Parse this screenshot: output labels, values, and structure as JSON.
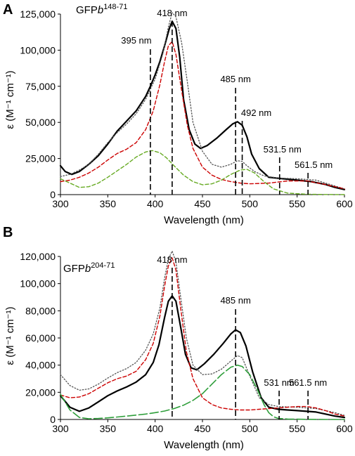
{
  "figure": {
    "panels": [
      {
        "letter": "A",
        "construct_base": "GFP",
        "construct_italic": "b",
        "construct_sup": "148-71"
      },
      {
        "letter": "B",
        "construct_base": "GFP",
        "construct_italic": "b",
        "construct_sup": "204-71"
      }
    ]
  },
  "chart_data": [
    {
      "type": "line",
      "panel": "A",
      "xlabel": "Wavelength (nm)",
      "ylabel": "ε (M⁻¹ cm⁻¹)",
      "xlim": [
        300,
        600
      ],
      "ylim": [
        0,
        125000
      ],
      "xticks": [
        300,
        350,
        400,
        450,
        500,
        550,
        600
      ],
      "xtick_labels": [
        "300",
        "350",
        "400",
        "450",
        "500",
        "550",
        "600"
      ],
      "yticks": [
        0,
        25000,
        50000,
        75000,
        100000,
        125000
      ],
      "ytick_labels": [
        "0",
        "25,000",
        "50,000",
        "75,000",
        "100,000",
        "125,000"
      ],
      "grid": false,
      "legend": "none",
      "series": [
        {
          "style": "solid",
          "color": "#000000",
          "x": [
            300,
            305,
            312,
            320,
            330,
            340,
            350,
            360,
            370,
            380,
            390,
            395,
            400,
            405,
            410,
            415,
            418,
            422,
            426,
            430,
            436,
            442,
            448,
            455,
            465,
            475,
            482,
            487,
            492,
            497,
            502,
            510,
            520,
            535,
            550,
            565,
            580,
            590,
            600
          ],
          "y": [
            20000,
            16000,
            14000,
            16000,
            21000,
            27000,
            35000,
            44000,
            51000,
            58000,
            68000,
            75000,
            83000,
            92000,
            103000,
            115000,
            120000,
            115000,
            95000,
            66000,
            45000,
            35000,
            32000,
            34000,
            39000,
            45000,
            49000,
            50500,
            48000,
            40000,
            28000,
            18000,
            12000,
            11000,
            10000,
            9000,
            7000,
            5000,
            3500
          ]
        },
        {
          "style": "dotted",
          "color": "#555555",
          "x": [
            300,
            310,
            320,
            330,
            340,
            350,
            360,
            370,
            380,
            390,
            400,
            408,
            414,
            418,
            422,
            428,
            434,
            440,
            450,
            460,
            470,
            480,
            487,
            492,
            497,
            505,
            515,
            530,
            550,
            570,
            590,
            600
          ],
          "y": [
            12500,
            14000,
            17000,
            21000,
            28000,
            36000,
            43000,
            49000,
            56000,
            66000,
            80000,
            97000,
            116000,
            126000,
            123000,
            105000,
            78000,
            50000,
            30000,
            21000,
            19000,
            21000,
            23500,
            23000,
            20000,
            16000,
            13000,
            11500,
            11000,
            10000,
            6000,
            4000
          ]
        },
        {
          "style": "dashed",
          "color": "#cc0000",
          "x": [
            300,
            310,
            320,
            330,
            340,
            350,
            360,
            370,
            380,
            390,
            398,
            405,
            410,
            414,
            418,
            422,
            428,
            434,
            440,
            450,
            460,
            470,
            480,
            490,
            500,
            520,
            540,
            560,
            580,
            600
          ],
          "y": [
            9000,
            10000,
            12000,
            15000,
            19000,
            24000,
            28500,
            31500,
            36000,
            45000,
            58000,
            76000,
            92000,
            103000,
            106000,
            97000,
            72000,
            48000,
            32000,
            19000,
            13500,
            10500,
            9000,
            8000,
            7500,
            8000,
            9500,
            9500,
            7000,
            4000
          ]
        },
        {
          "style": "dashed",
          "color": "#66aa22",
          "x": [
            300,
            310,
            320,
            330,
            340,
            350,
            360,
            370,
            380,
            390,
            397,
            405,
            412,
            420,
            430,
            440,
            450,
            460,
            470,
            480,
            490,
            497,
            505,
            515,
            525,
            540,
            560,
            580,
            600
          ],
          "y": [
            11000,
            8000,
            5000,
            5500,
            8000,
            12000,
            16500,
            21000,
            26000,
            29500,
            30500,
            29000,
            25500,
            20000,
            13500,
            9000,
            6800,
            7500,
            10000,
            14000,
            17000,
            17500,
            15000,
            9000,
            4000,
            1000,
            300,
            100,
            0
          ]
        }
      ],
      "annotations": [
        {
          "label": "395 nm",
          "x": 395
        },
        {
          "label": "418 nm",
          "x": 418
        },
        {
          "label": "485 nm",
          "x": 485
        },
        {
          "label": "492 nm",
          "x": 492
        },
        {
          "label": "531.5 nm",
          "x": 531.5
        },
        {
          "label": "561.5 nm",
          "x": 561.5
        }
      ]
    },
    {
      "type": "line",
      "panel": "B",
      "xlabel": "Wavelength (nm)",
      "ylabel": "ε (M⁻¹ cm⁻¹)",
      "xlim": [
        300,
        600
      ],
      "ylim": [
        0,
        120000
      ],
      "xticks": [
        300,
        350,
        400,
        450,
        500,
        550,
        600
      ],
      "xtick_labels": [
        "300",
        "350",
        "400",
        "450",
        "500",
        "550",
        "600"
      ],
      "yticks": [
        0,
        20000,
        40000,
        60000,
        80000,
        100000,
        120000
      ],
      "ytick_labels": [
        "0",
        "20,000",
        "40,000",
        "60,000",
        "80,000",
        "100,000",
        "120,000"
      ],
      "grid": false,
      "legend": "none",
      "series": [
        {
          "style": "solid",
          "color": "#000000",
          "x": [
            300,
            310,
            320,
            330,
            340,
            350,
            360,
            370,
            380,
            390,
            398,
            404,
            410,
            414,
            418,
            422,
            427,
            432,
            438,
            444,
            452,
            462,
            472,
            480,
            485,
            490,
            496,
            503,
            512,
            520,
            530,
            540,
            550,
            560,
            570,
            580,
            590,
            600
          ],
          "y": [
            17500,
            9000,
            6000,
            8500,
            13000,
            17500,
            21000,
            24000,
            27500,
            33000,
            42000,
            55000,
            75000,
            87000,
            91000,
            87000,
            68000,
            48000,
            38000,
            36500,
            41000,
            48000,
            56000,
            63000,
            66000,
            64000,
            54000,
            35000,
            16000,
            9000,
            7500,
            7000,
            6500,
            6000,
            5500,
            4000,
            2500,
            1500
          ]
        },
        {
          "style": "dotted",
          "color": "#555555",
          "x": [
            300,
            310,
            320,
            330,
            340,
            350,
            360,
            370,
            380,
            390,
            398,
            405,
            410,
            414,
            418,
            422,
            427,
            433,
            440,
            450,
            460,
            470,
            480,
            487,
            492,
            500,
            510,
            520,
            530,
            550,
            570,
            590,
            600
          ],
          "y": [
            33000,
            25000,
            21500,
            22500,
            26000,
            30500,
            34500,
            37500,
            42000,
            51000,
            63000,
            82000,
            104000,
            118000,
            124000,
            116000,
            90000,
            60000,
            40000,
            33000,
            33500,
            37000,
            43000,
            47000,
            45500,
            32000,
            16000,
            11000,
            9500,
            9000,
            8000,
            5000,
            3000
          ]
        },
        {
          "style": "dashed",
          "color": "#cc0000",
          "x": [
            300,
            310,
            320,
            330,
            340,
            350,
            360,
            370,
            380,
            390,
            398,
            405,
            410,
            414,
            418,
            422,
            427,
            433,
            440,
            450,
            460,
            470,
            480,
            490,
            500,
            510,
            520,
            530,
            540,
            550,
            560,
            570,
            580,
            590,
            600
          ],
          "y": [
            18000,
            16000,
            16500,
            19000,
            23000,
            27000,
            30000,
            32000,
            35500,
            44000,
            56000,
            76000,
            98000,
            113000,
            119000,
            110000,
            82000,
            50000,
            30000,
            16000,
            11000,
            8500,
            7500,
            7000,
            7000,
            7500,
            8000,
            8500,
            9000,
            9500,
            9500,
            8500,
            6500,
            4000,
            2500
          ]
        },
        {
          "style": "longdash",
          "color": "#2e9e3a",
          "x": [
            300,
            310,
            320,
            330,
            340,
            350,
            360,
            370,
            380,
            390,
            400,
            410,
            420,
            430,
            440,
            450,
            460,
            470,
            480,
            487,
            492,
            500,
            508,
            515,
            520,
            525,
            530,
            540,
            560,
            580,
            600
          ],
          "y": [
            18500,
            7000,
            1500,
            500,
            800,
            1200,
            1800,
            2500,
            3200,
            4000,
            5000,
            6200,
            8000,
            10500,
            14000,
            19000,
            26000,
            33000,
            38500,
            40000,
            39000,
            33000,
            22000,
            11000,
            5000,
            2000,
            800,
            300,
            100,
            0,
            0
          ]
        }
      ],
      "annotations": [
        {
          "label": "418 nm",
          "x": 418
        },
        {
          "label": "485 nm",
          "x": 485
        },
        {
          "label": "531 nm",
          "x": 531
        },
        {
          "label": "561.5 nm",
          "x": 561.5
        }
      ]
    }
  ]
}
